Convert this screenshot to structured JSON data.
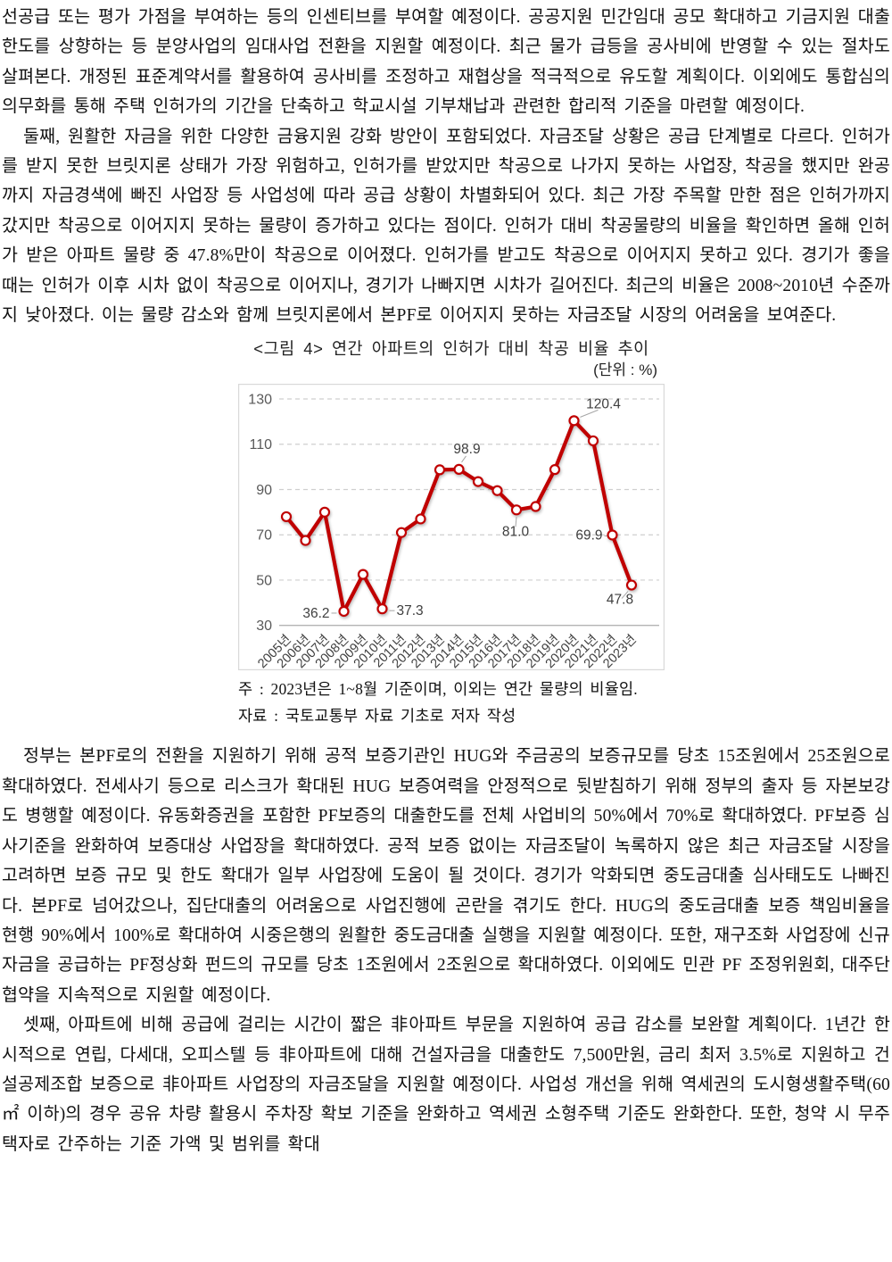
{
  "content": {
    "p1": "선공급 또는 평가 가점을 부여하는 등의 인센티브를 부여할 예정이다. 공공지원 민간임대 공모 확대하고 기금지원 대출한도를 상향하는 등 분양사업의 임대사업 전환을 지원할 예정이다. 최근 물가 급등을 공사비에 반영할 수 있는 절차도 살펴본다. 개정된 표준계약서를 활용하여 공사비를 조정하고 재협상을 적극적으로 유도할 계획이다. 이외에도 통합심의 의무화를 통해 주택 인허가의 기간을 단축하고 학교시설 기부채납과 관련한 합리적 기준을 마련할 예정이다.",
    "p2": "둘째, 원활한 자금을 위한 다양한 금융지원 강화 방안이 포함되었다. 자금조달 상황은 공급 단계별로 다르다. 인허가를 받지 못한 브릿지론 상태가 가장 위험하고, 인허가를 받았지만 착공으로 나가지 못하는 사업장, 착공을 했지만 완공까지 자금경색에 빠진 사업장 등 사업성에 따라 공급 상황이 차별화되어 있다. 최근 가장 주목할 만한 점은 인허가까지 갔지만 착공으로 이어지지 못하는 물량이 증가하고 있다는 점이다. 인허가 대비 착공물량의 비율을 확인하면 올해 인허가 받은 아파트 물량 중 47.8%만이 착공으로 이어졌다. 인허가를 받고도 착공으로 이어지지 못하고 있다. 경기가 좋을 때는 인허가 이후 시차 없이 착공으로 이어지나, 경기가 나빠지면 시차가 길어진다. 최근의 비율은 2008~2010년 수준까지 낮아졌다. 이는 물량 감소와 함께 브릿지론에서 본PF로 이어지지 못하는 자금조달 시장의 어려움을 보여준다.",
    "p3": "정부는 본PF로의 전환을 지원하기 위해 공적 보증기관인 HUG와 주금공의 보증규모를 당초 15조원에서 25조원으로 확대하였다. 전세사기 등으로 리스크가 확대된 HUG 보증여력을 안정적으로 뒷받침하기 위해 정부의 출자 등 자본보강도 병행할 예정이다. 유동화증권을 포함한 PF보증의 대출한도를 전체 사업비의 50%에서 70%로 확대하였다. PF보증 심사기준을 완화하여 보증대상 사업장을 확대하였다. 공적 보증 없이는 자금조달이 녹록하지 않은 최근 자금조달 시장을 고려하면 보증 규모 및 한도 확대가 일부 사업장에 도움이 될 것이다. 경기가 악화되면 중도금대출 심사태도도 나빠진다. 본PF로 넘어갔으나, 집단대출의 어려움으로 사업진행에 곤란을 겪기도 한다. HUG의 중도금대출 보증 책임비율을 현행 90%에서 100%로 확대하여 시중은행의 원활한 중도금대출 실행을 지원할 예정이다. 또한, 재구조화 사업장에 신규자금을 공급하는 PF정상화 펀드의 규모를 당초 1조원에서 2조원으로 확대하였다. 이외에도 민관 PF 조정위원회, 대주단협약을 지속적으로 지원할 예정이다.",
    "p4": "셋째, 아파트에 비해 공급에 걸리는 시간이 짧은 非아파트 부문을 지원하여 공급 감소를 보완할 계획이다. 1년간 한시적으로 연립, 다세대, 오피스텔 등 非아파트에 대해 건설자금을 대출한도 7,500만원, 금리 최저 3.5%로 지원하고 건설공제조합 보증으로 非아파트 사업장의 자금조달을 지원할 예정이다. 사업성 개선을 위해 역세권의 도시형생활주택(60㎡ 이하)의 경우 공유 차량 활용시 주차장 확보 기준을 완화하고 역세권 소형주택 기준도 완화한다. 또한, 청약 시 무주택자로 간주하는 기준 가액 및 범위를 확대"
  },
  "chart_data": {
    "type": "line",
    "title": "<그림 4> 연간 아파트의 인허가 대비 착공 비율 추이",
    "unit_label": "(단위 : %)",
    "note": "주 : 2023년은 1~8월 기준이며, 이외는 연간 물량의 비율임.",
    "source": "자료 : 국토교통부 자료 기초로 저자 작성",
    "categories": [
      "2005년",
      "2006년",
      "2007년",
      "2008년",
      "2009년",
      "2010년",
      "2011년",
      "2012년",
      "2013년",
      "2014년",
      "2015년",
      "2016년",
      "2017년",
      "2018년",
      "2019년",
      "2020년",
      "2021년",
      "2022년",
      "2023년"
    ],
    "values": [
      78.0,
      67.5,
      80.0,
      36.2,
      52.5,
      37.3,
      71.0,
      77.0,
      98.7,
      98.9,
      93.5,
      89.5,
      81.0,
      82.5,
      98.8,
      120.4,
      111.5,
      69.9,
      47.8
    ],
    "labeled_points": [
      {
        "index": 3,
        "label": "36.2"
      },
      {
        "index": 5,
        "label": "37.3"
      },
      {
        "index": 9,
        "label": "98.9"
      },
      {
        "index": 12,
        "label": "81.0"
      },
      {
        "index": 15,
        "label": "120.4"
      },
      {
        "index": 17,
        "label": "69.9"
      },
      {
        "index": 18,
        "label": "47.8"
      }
    ],
    "ylim": [
      30,
      130
    ],
    "yticks": [
      130,
      110,
      90,
      70,
      50,
      30
    ],
    "grid": "horizontal-dashed",
    "legend": "none",
    "line_color": "#c00000",
    "marker_fill": "#ffffff",
    "grid_color": "#cfcfcf",
    "axis_label_color": "#595959",
    "tick_label_color": "#3f3f3f",
    "border_color": "#d9d9d9"
  }
}
